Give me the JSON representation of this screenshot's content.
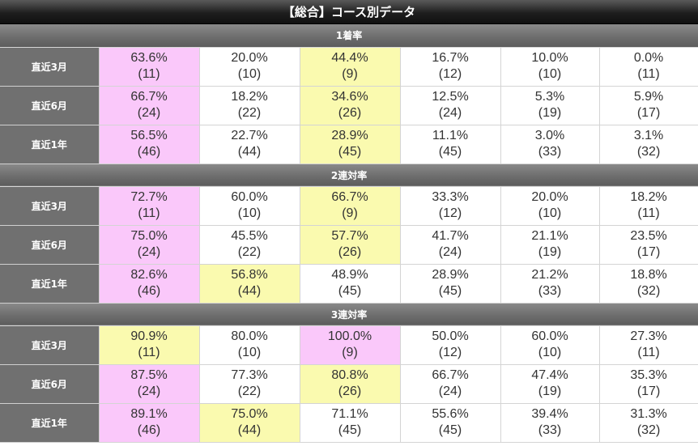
{
  "title": "【総合】コース別データ",
  "sections": [
    {
      "label": "1着率",
      "rows": [
        {
          "label": "直近3月",
          "cells": [
            {
              "pct": "63.6%",
              "n": "(11)",
              "hl": "pink"
            },
            {
              "pct": "20.0%",
              "n": "(10)",
              "hl": ""
            },
            {
              "pct": "44.4%",
              "n": "(9)",
              "hl": "yellow"
            },
            {
              "pct": "16.7%",
              "n": "(12)",
              "hl": ""
            },
            {
              "pct": "10.0%",
              "n": "(10)",
              "hl": ""
            },
            {
              "pct": "0.0%",
              "n": "(11)",
              "hl": ""
            }
          ]
        },
        {
          "label": "直近6月",
          "cells": [
            {
              "pct": "66.7%",
              "n": "(24)",
              "hl": "pink"
            },
            {
              "pct": "18.2%",
              "n": "(22)",
              "hl": ""
            },
            {
              "pct": "34.6%",
              "n": "(26)",
              "hl": "yellow"
            },
            {
              "pct": "12.5%",
              "n": "(24)",
              "hl": ""
            },
            {
              "pct": "5.3%",
              "n": "(19)",
              "hl": ""
            },
            {
              "pct": "5.9%",
              "n": "(17)",
              "hl": ""
            }
          ]
        },
        {
          "label": "直近1年",
          "cells": [
            {
              "pct": "56.5%",
              "n": "(46)",
              "hl": "pink"
            },
            {
              "pct": "22.7%",
              "n": "(44)",
              "hl": ""
            },
            {
              "pct": "28.9%",
              "n": "(45)",
              "hl": "yellow"
            },
            {
              "pct": "11.1%",
              "n": "(45)",
              "hl": ""
            },
            {
              "pct": "3.0%",
              "n": "(33)",
              "hl": ""
            },
            {
              "pct": "3.1%",
              "n": "(32)",
              "hl": ""
            }
          ]
        }
      ]
    },
    {
      "label": "2連対率",
      "rows": [
        {
          "label": "直近3月",
          "cells": [
            {
              "pct": "72.7%",
              "n": "(11)",
              "hl": "pink"
            },
            {
              "pct": "60.0%",
              "n": "(10)",
              "hl": ""
            },
            {
              "pct": "66.7%",
              "n": "(9)",
              "hl": "yellow"
            },
            {
              "pct": "33.3%",
              "n": "(12)",
              "hl": ""
            },
            {
              "pct": "20.0%",
              "n": "(10)",
              "hl": ""
            },
            {
              "pct": "18.2%",
              "n": "(11)",
              "hl": ""
            }
          ]
        },
        {
          "label": "直近6月",
          "cells": [
            {
              "pct": "75.0%",
              "n": "(24)",
              "hl": "pink"
            },
            {
              "pct": "45.5%",
              "n": "(22)",
              "hl": ""
            },
            {
              "pct": "57.7%",
              "n": "(26)",
              "hl": "yellow"
            },
            {
              "pct": "41.7%",
              "n": "(24)",
              "hl": ""
            },
            {
              "pct": "21.1%",
              "n": "(19)",
              "hl": ""
            },
            {
              "pct": "23.5%",
              "n": "(17)",
              "hl": ""
            }
          ]
        },
        {
          "label": "直近1年",
          "cells": [
            {
              "pct": "82.6%",
              "n": "(46)",
              "hl": "pink"
            },
            {
              "pct": "56.8%",
              "n": "(44)",
              "hl": "yellow"
            },
            {
              "pct": "48.9%",
              "n": "(45)",
              "hl": ""
            },
            {
              "pct": "28.9%",
              "n": "(45)",
              "hl": ""
            },
            {
              "pct": "21.2%",
              "n": "(33)",
              "hl": ""
            },
            {
              "pct": "18.8%",
              "n": "(32)",
              "hl": ""
            }
          ]
        }
      ]
    },
    {
      "label": "3連対率",
      "rows": [
        {
          "label": "直近3月",
          "cells": [
            {
              "pct": "90.9%",
              "n": "(11)",
              "hl": "yellow"
            },
            {
              "pct": "80.0%",
              "n": "(10)",
              "hl": ""
            },
            {
              "pct": "100.0%",
              "n": "(9)",
              "hl": "pink"
            },
            {
              "pct": "50.0%",
              "n": "(12)",
              "hl": ""
            },
            {
              "pct": "60.0%",
              "n": "(10)",
              "hl": ""
            },
            {
              "pct": "27.3%",
              "n": "(11)",
              "hl": ""
            }
          ]
        },
        {
          "label": "直近6月",
          "cells": [
            {
              "pct": "87.5%",
              "n": "(24)",
              "hl": "pink"
            },
            {
              "pct": "77.3%",
              "n": "(22)",
              "hl": ""
            },
            {
              "pct": "80.8%",
              "n": "(26)",
              "hl": "yellow"
            },
            {
              "pct": "66.7%",
              "n": "(24)",
              "hl": ""
            },
            {
              "pct": "47.4%",
              "n": "(19)",
              "hl": ""
            },
            {
              "pct": "35.3%",
              "n": "(17)",
              "hl": ""
            }
          ]
        },
        {
          "label": "直近1年",
          "cells": [
            {
              "pct": "89.1%",
              "n": "(46)",
              "hl": "pink"
            },
            {
              "pct": "75.0%",
              "n": "(44)",
              "hl": "yellow"
            },
            {
              "pct": "71.1%",
              "n": "(45)",
              "hl": ""
            },
            {
              "pct": "55.6%",
              "n": "(45)",
              "hl": ""
            },
            {
              "pct": "39.4%",
              "n": "(33)",
              "hl": ""
            },
            {
              "pct": "31.3%",
              "n": "(32)",
              "hl": ""
            }
          ]
        }
      ]
    }
  ],
  "colors": {
    "highlight_pink": "#fac8fa",
    "highlight_yellow": "#fafaaf",
    "header_dark": "#1e1e1e",
    "section_gray": "#707070",
    "row_label_gray": "#707070"
  }
}
